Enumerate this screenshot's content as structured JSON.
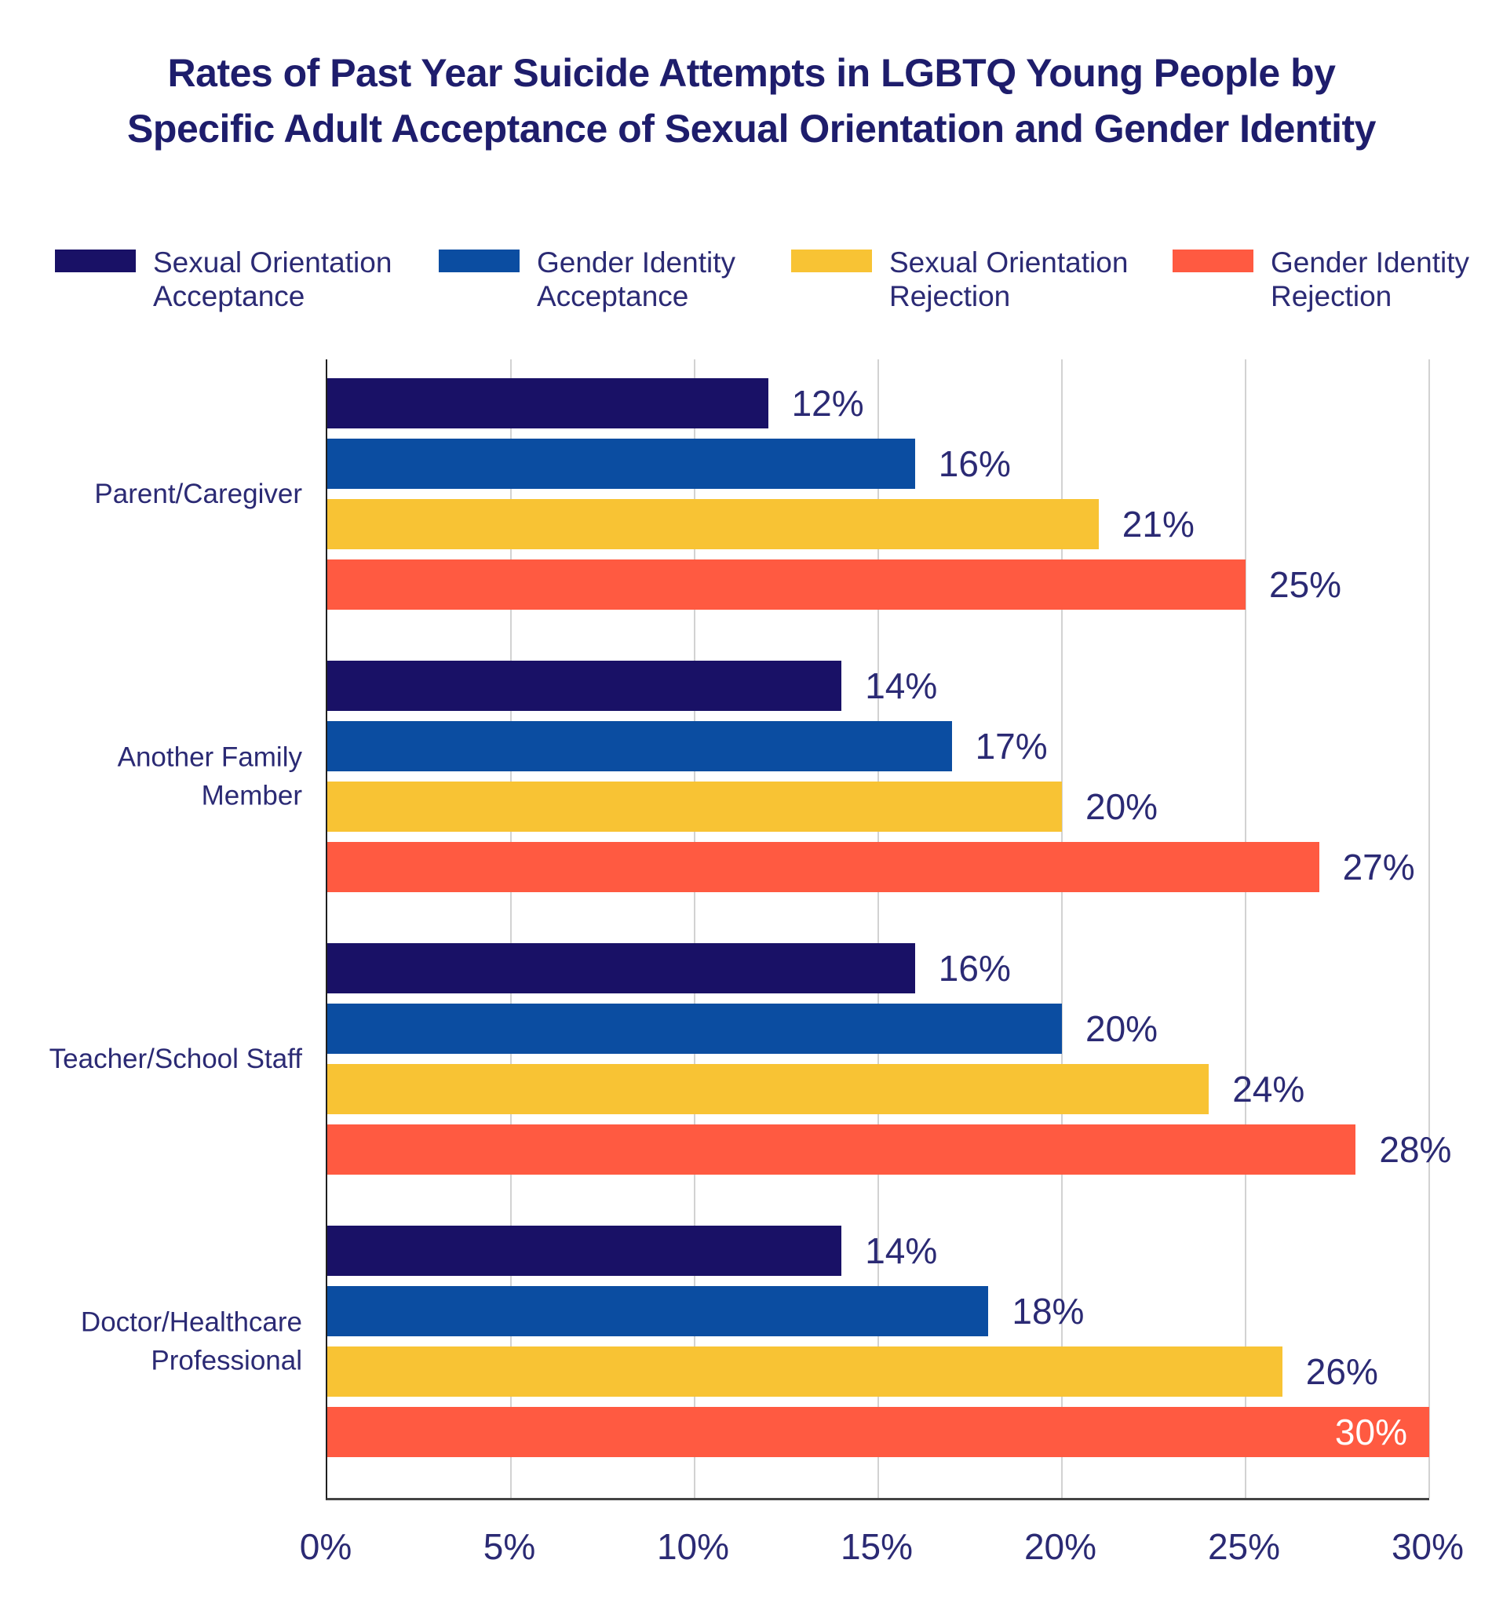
{
  "title": {
    "line1": "Rates of Past Year Suicide Attempts in LGBTQ Young People by",
    "line2": "Specific Adult Acceptance of Sexual Orientation and Gender Identity"
  },
  "colors": {
    "background": "#ffffff",
    "title_text": "#1e1d6c",
    "body_text": "#2b2a74",
    "gridline": "#d2d2d2",
    "axis_line": "#444444",
    "zero_line": "#1f1f1f",
    "value_label_inside": "#ffffff"
  },
  "chart_data": {
    "type": "bar",
    "orientation": "horizontal",
    "title": "Rates of Past Year Suicide Attempts in LGBTQ Young People by Specific Adult Acceptance of Sexual Orientation and Gender Identity",
    "categories": [
      "Parent/Caregiver",
      "Another Family Member",
      "Teacher/School Staff",
      "Doctor/Healthcare Professional"
    ],
    "series": [
      {
        "name": "Sexual Orientation Acceptance",
        "color": "#191166",
        "values": [
          12,
          14,
          16,
          14
        ]
      },
      {
        "name": "Gender Identity Acceptance",
        "color": "#0b4da1",
        "values": [
          16,
          17,
          20,
          18
        ]
      },
      {
        "name": "Sexual Orientation Rejection",
        "color": "#f8c334",
        "values": [
          21,
          20,
          24,
          26
        ]
      },
      {
        "name": "Gender Identity Rejection",
        "color": "#ff5a41",
        "values": [
          25,
          27,
          28,
          30
        ]
      }
    ],
    "value_suffix": "%",
    "xlim": [
      0,
      30
    ],
    "x_ticks": [
      "0%",
      "5%",
      "10%",
      "15%",
      "20%",
      "25%",
      "30%"
    ],
    "grid": true,
    "legend_position": "top",
    "value_labels": "outside-right, shown inside bar in white when bar reaches axis maximum"
  }
}
